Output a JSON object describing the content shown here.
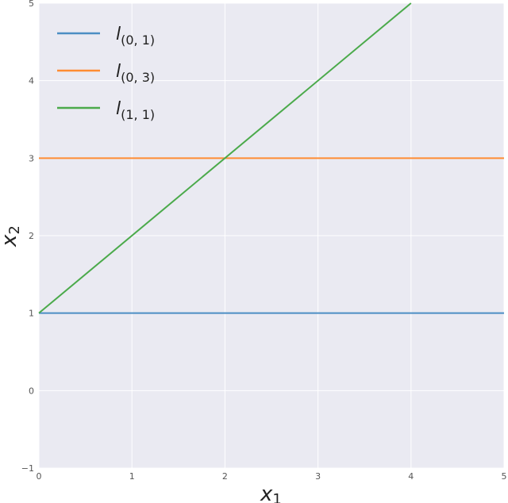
{
  "chart_data": {
    "type": "line",
    "xlabel": "x",
    "xlabel_sub": "1",
    "ylabel": "x",
    "ylabel_sub": "2",
    "xlim": [
      0,
      5
    ],
    "ylim": [
      -1,
      5
    ],
    "xticks": [
      0,
      1,
      2,
      3,
      4,
      5
    ],
    "yticks": [
      -1,
      0,
      1,
      2,
      3,
      4,
      5
    ],
    "grid": true,
    "legend_placement": "top-left",
    "background": "#EAEAF2",
    "series": [
      {
        "name": "l",
        "name_sub": "(0, 1)",
        "color": "#4C8EC4",
        "x": [
          0,
          5
        ],
        "y": [
          1,
          1
        ]
      },
      {
        "name": "l",
        "name_sub": "(0, 3)",
        "color": "#FF8C33",
        "x": [
          0,
          5
        ],
        "y": [
          3,
          3
        ]
      },
      {
        "name": "l",
        "name_sub": "(1, 1)",
        "color": "#4BAA4B",
        "x": [
          0,
          4
        ],
        "y": [
          1,
          5
        ]
      }
    ]
  }
}
